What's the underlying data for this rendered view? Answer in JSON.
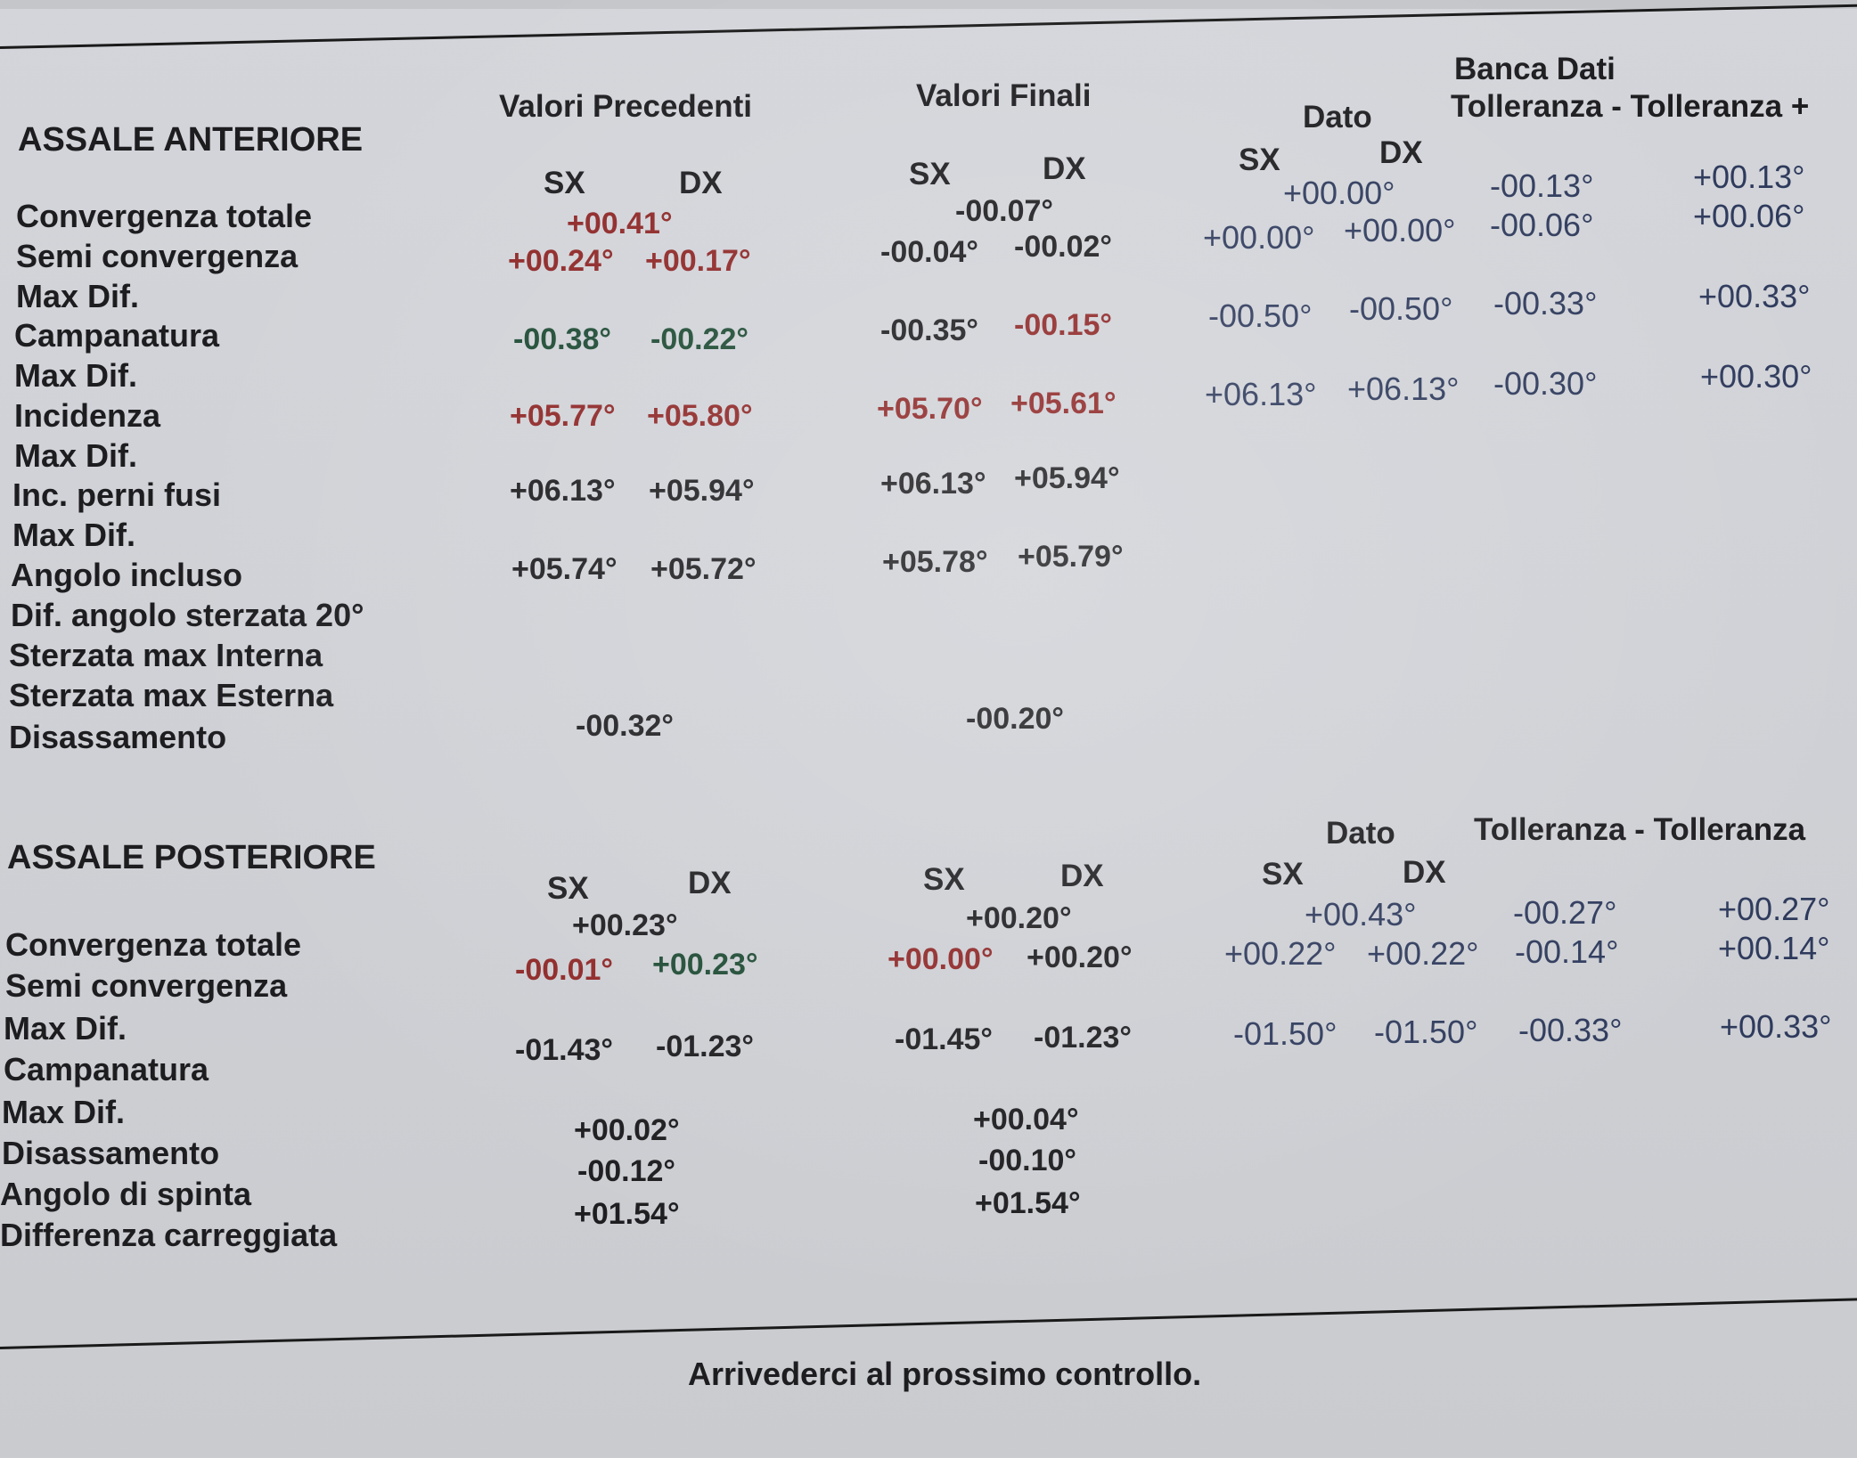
{
  "front": {
    "title": "ASSALE ANTERIORE",
    "col_prev": "Valori Precedenti",
    "col_final": "Valori Finali",
    "db_title": "Banca Dati",
    "db_dato": "Dato",
    "tol_header": "Tolleranza - Tolleranza +",
    "sx": "SX",
    "dx": "DX",
    "labels": [
      "Convergenza totale",
      "Semi convergenza",
      "Max Dif.",
      "Campanatura",
      "Max Dif.",
      "Incidenza",
      "Max Dif.",
      "Inc. perni fusi",
      "Max Dif.",
      "Angolo incluso",
      "Dif. angolo sterzata 20°",
      "Sterzata max Interna",
      "Sterzata max Esterna",
      "Disassamento"
    ],
    "conv_tot": {
      "prev": "+00.41°",
      "final": "-00.07°",
      "dato": "+00.00°",
      "tol_minus": "-00.13°",
      "tol_plus": "+00.13°"
    },
    "semi_conv": {
      "prev_sx": "+00.24°",
      "prev_dx": "+00.17°",
      "final_sx": "-00.04°",
      "final_dx": "-00.02°",
      "dato_sx": "+00.00°",
      "dato_dx": "+00.00°",
      "tol_minus": "-00.06°",
      "tol_plus": "+00.06°"
    },
    "campanatura": {
      "prev_sx": "-00.38°",
      "prev_dx": "-00.22°",
      "final_sx": "-00.35°",
      "final_dx": "-00.15°",
      "dato_sx": "-00.50°",
      "dato_dx": "-00.50°",
      "tol_minus": "-00.33°",
      "tol_plus": "+00.33°"
    },
    "incidenza": {
      "prev_sx": "+05.77°",
      "prev_dx": "+05.80°",
      "final_sx": "+05.70°",
      "final_dx": "+05.61°",
      "dato_sx": "+06.13°",
      "dato_dx": "+06.13°",
      "tol_minus": "-00.30°",
      "tol_plus": "+00.30°"
    },
    "perni": {
      "prev_sx": "+06.13°",
      "prev_dx": "+05.94°",
      "final_sx": "+06.13°",
      "final_dx": "+05.94°"
    },
    "incluso": {
      "prev_sx": "+05.74°",
      "prev_dx": "+05.72°",
      "final_sx": "+05.78°",
      "final_dx": "+05.79°"
    },
    "disassamento": {
      "prev": "-00.32°",
      "final": "-00.20°"
    }
  },
  "rear": {
    "title": "ASSALE POSTERIORE",
    "db_dato": "Dato",
    "tol_header": "Tolleranza - Tolleranza",
    "sx": "SX",
    "dx": "DX",
    "labels": [
      "Convergenza totale",
      "Semi convergenza",
      "Max Dif.",
      "Campanatura",
      "Max Dif.",
      "Disassamento",
      "Angolo di spinta",
      "Differenza carreggiata"
    ],
    "conv_tot": {
      "prev": "+00.23°",
      "final": "+00.20°",
      "dato": "+00.43°",
      "tol_minus": "-00.27°",
      "tol_plus": "+00.27°"
    },
    "semi_conv": {
      "prev_sx": "-00.01°",
      "prev_dx": "+00.23°",
      "final_sx": "+00.00°",
      "final_dx": "+00.20°",
      "dato_sx": "+00.22°",
      "dato_dx": "+00.22°",
      "tol_minus": "-00.14°",
      "tol_plus": "+00.14°"
    },
    "campanatura": {
      "prev_sx": "-01.43°",
      "prev_dx": "-01.23°",
      "final_sx": "-01.45°",
      "final_dx": "-01.23°",
      "dato_sx": "-01.50°",
      "dato_dx": "-01.50°",
      "tol_minus": "-00.33°",
      "tol_plus": "+00.33°"
    },
    "disassamento": {
      "prev": "+00.02°",
      "final": "+00.04°"
    },
    "spinta": {
      "prev": "-00.12°",
      "final": "-00.10°"
    },
    "carreggiata": {
      "prev": "+01.54°",
      "final": "+01.54°"
    }
  },
  "footer": "Arrivederci al prossimo controllo."
}
